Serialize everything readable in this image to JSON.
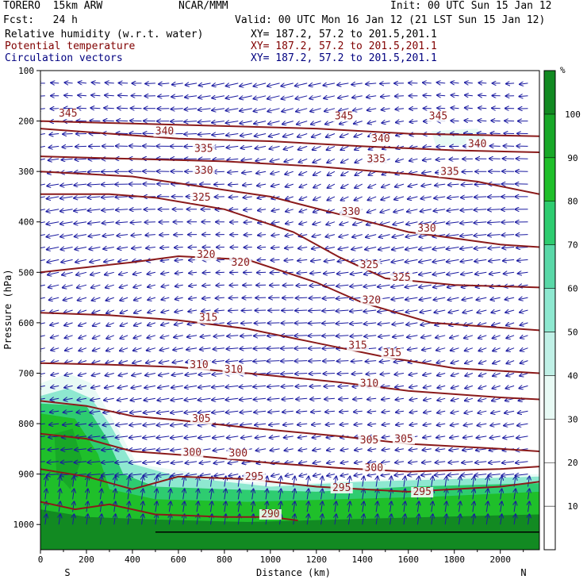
{
  "header": {
    "model": "TORERO  15km ARW",
    "org": "NCAR/MMM",
    "init": "Init: 00 UTC Sun 15 Jan 12",
    "fcst": "Fcst:   24 h",
    "valid": "Valid: 00 UTC Mon 16 Jan 12 (21 LST Sun 15 Jan 12)",
    "fields": [
      {
        "label": "Relative humidity (w.r.t. water)",
        "xy": "XY= 187.2, 57.2 to 201.5,201.1"
      },
      {
        "label": "Potential temperature",
        "xy": "XY= 187.2, 57.2 to 201.5,201.1"
      },
      {
        "label": "Circulation vectors",
        "xy": "XY= 187.2, 57.2 to 201.5,201.1"
      }
    ]
  },
  "colors": {
    "theta": "#8b1a1a",
    "vectors": "#1a1aa0",
    "rh_scale": [
      "#ffffff",
      "#ffffff",
      "#ffffff",
      "#e8faf5",
      "#c0f0e6",
      "#8ee8d0",
      "#5ad8a8",
      "#2ecc70",
      "#1fbf2a",
      "#18a828",
      "#128a22",
      "#0a6e1a"
    ]
  },
  "chart_data": {
    "type": "cross-section",
    "xlabel": "Distance (km)",
    "ylabel": "Pressure (hPa)",
    "x_ticks": [
      0,
      200,
      400,
      600,
      800,
      1000,
      1200,
      1400,
      1600,
      1800,
      2000
    ],
    "y_ticks": [
      100,
      200,
      300,
      400,
      500,
      600,
      700,
      800,
      900,
      1000
    ],
    "xlim": [
      0,
      2170
    ],
    "ylim": [
      1050,
      100
    ],
    "end_left": "S",
    "end_right": "N",
    "colorbar": {
      "unit": "%",
      "ticks": [
        10,
        20,
        30,
        40,
        50,
        60,
        70,
        80,
        90,
        100
      ],
      "levels": [
        0,
        10,
        20,
        30,
        40,
        50,
        60,
        70,
        80,
        90,
        100,
        110
      ]
    },
    "theta_contours": [
      {
        "level": "345",
        "points": [
          [
            0,
            200
          ],
          [
            400,
            205
          ],
          [
            800,
            210
          ],
          [
            1200,
            215
          ],
          [
            1600,
            225
          ],
          [
            2170,
            230
          ]
        ],
        "labels": [
          [
            120,
            190
          ],
          [
            1320,
            195
          ],
          [
            1730,
            195
          ]
        ]
      },
      {
        "level": "340",
        "points": [
          [
            0,
            215
          ],
          [
            300,
            225
          ],
          [
            600,
            235
          ],
          [
            1000,
            240
          ],
          [
            1400,
            250
          ],
          [
            1800,
            258
          ],
          [
            2170,
            262
          ]
        ],
        "labels": [
          [
            540,
            225
          ],
          [
            1480,
            240
          ],
          [
            1900,
            250
          ]
        ]
      },
      {
        "level": "335",
        "points": [
          [
            0,
            270
          ],
          [
            400,
            275
          ],
          [
            800,
            280
          ],
          [
            1200,
            290
          ],
          [
            1600,
            305
          ],
          [
            1900,
            320
          ],
          [
            2170,
            345
          ]
        ],
        "labels": [
          [
            710,
            260
          ],
          [
            1460,
            280
          ],
          [
            1780,
            305
          ]
        ]
      },
      {
        "level": "330",
        "points": [
          [
            0,
            300
          ],
          [
            400,
            310
          ],
          [
            700,
            330
          ],
          [
            1000,
            350
          ],
          [
            1300,
            385
          ],
          [
            1600,
            420
          ],
          [
            2000,
            445
          ],
          [
            2170,
            450
          ]
        ],
        "labels": [
          [
            710,
            303
          ],
          [
            1350,
            385
          ],
          [
            1680,
            418
          ]
        ]
      },
      {
        "level": "325",
        "points": [
          [
            0,
            345
          ],
          [
            300,
            345
          ],
          [
            500,
            352
          ],
          [
            800,
            375
          ],
          [
            1100,
            420
          ],
          [
            1300,
            470
          ],
          [
            1500,
            512
          ],
          [
            1800,
            525
          ],
          [
            2170,
            530
          ]
        ],
        "labels": [
          [
            700,
            356
          ],
          [
            1430,
            490
          ],
          [
            1570,
            515
          ]
        ]
      },
      {
        "level": "320",
        "points": [
          [
            0,
            500
          ],
          [
            200,
            490
          ],
          [
            400,
            480
          ],
          [
            600,
            468
          ],
          [
            900,
            475
          ],
          [
            1200,
            520
          ],
          [
            1400,
            560
          ],
          [
            1700,
            600
          ],
          [
            2170,
            615
          ]
        ],
        "labels": [
          [
            720,
            470
          ],
          [
            870,
            485
          ],
          [
            1440,
            560
          ]
        ]
      },
      {
        "level": "315",
        "points": [
          [
            0,
            580
          ],
          [
            300,
            585
          ],
          [
            600,
            595
          ],
          [
            900,
            612
          ],
          [
            1200,
            640
          ],
          [
            1500,
            668
          ],
          [
            1800,
            690
          ],
          [
            2170,
            700
          ]
        ],
        "labels": [
          [
            730,
            595
          ],
          [
            1380,
            650
          ],
          [
            1530,
            665
          ]
        ]
      },
      {
        "level": "310",
        "points": [
          [
            0,
            680
          ],
          [
            300,
            683
          ],
          [
            600,
            688
          ],
          [
            900,
            700
          ],
          [
            1300,
            718
          ],
          [
            1600,
            735
          ],
          [
            2000,
            748
          ],
          [
            2170,
            752
          ]
        ],
        "labels": [
          [
            690,
            688
          ],
          [
            840,
            698
          ],
          [
            1430,
            725
          ]
        ]
      },
      {
        "level": "305",
        "points": [
          [
            0,
            755
          ],
          [
            200,
            765
          ],
          [
            400,
            785
          ],
          [
            600,
            793
          ],
          [
            900,
            808
          ],
          [
            1300,
            825
          ],
          [
            1600,
            840
          ],
          [
            2000,
            850
          ],
          [
            2170,
            855
          ]
        ],
        "labels": [
          [
            700,
            795
          ],
          [
            1430,
            838
          ],
          [
            1580,
            835
          ]
        ]
      },
      {
        "level": "300",
        "points": [
          [
            0,
            820
          ],
          [
            200,
            830
          ],
          [
            400,
            855
          ],
          [
            700,
            865
          ],
          [
            1000,
            878
          ],
          [
            1300,
            888
          ],
          [
            1600,
            895
          ],
          [
            2000,
            890
          ],
          [
            2170,
            885
          ]
        ],
        "labels": [
          [
            660,
            862
          ],
          [
            860,
            864
          ],
          [
            1450,
            893
          ]
        ]
      },
      {
        "level": "295",
        "points": [
          [
            0,
            890
          ],
          [
            200,
            905
          ],
          [
            400,
            930
          ],
          [
            600,
            905
          ],
          [
            900,
            910
          ],
          [
            1200,
            925
          ],
          [
            1600,
            935
          ],
          [
            2000,
            925
          ],
          [
            2170,
            915
          ]
        ],
        "labels": [
          [
            930,
            910
          ],
          [
            1310,
            932
          ],
          [
            1660,
            940
          ]
        ]
      },
      {
        "level": "290",
        "points": [
          [
            0,
            955
          ],
          [
            150,
            970
          ],
          [
            300,
            960
          ],
          [
            500,
            980
          ],
          [
            800,
            985
          ],
          [
            1000,
            985
          ],
          [
            1120,
            992
          ]
        ],
        "labels": [
          [
            1000,
            984
          ]
        ]
      }
    ],
    "surface": {
      "pressure": 1015,
      "from_km": 500,
      "to_km": 2170
    }
  }
}
